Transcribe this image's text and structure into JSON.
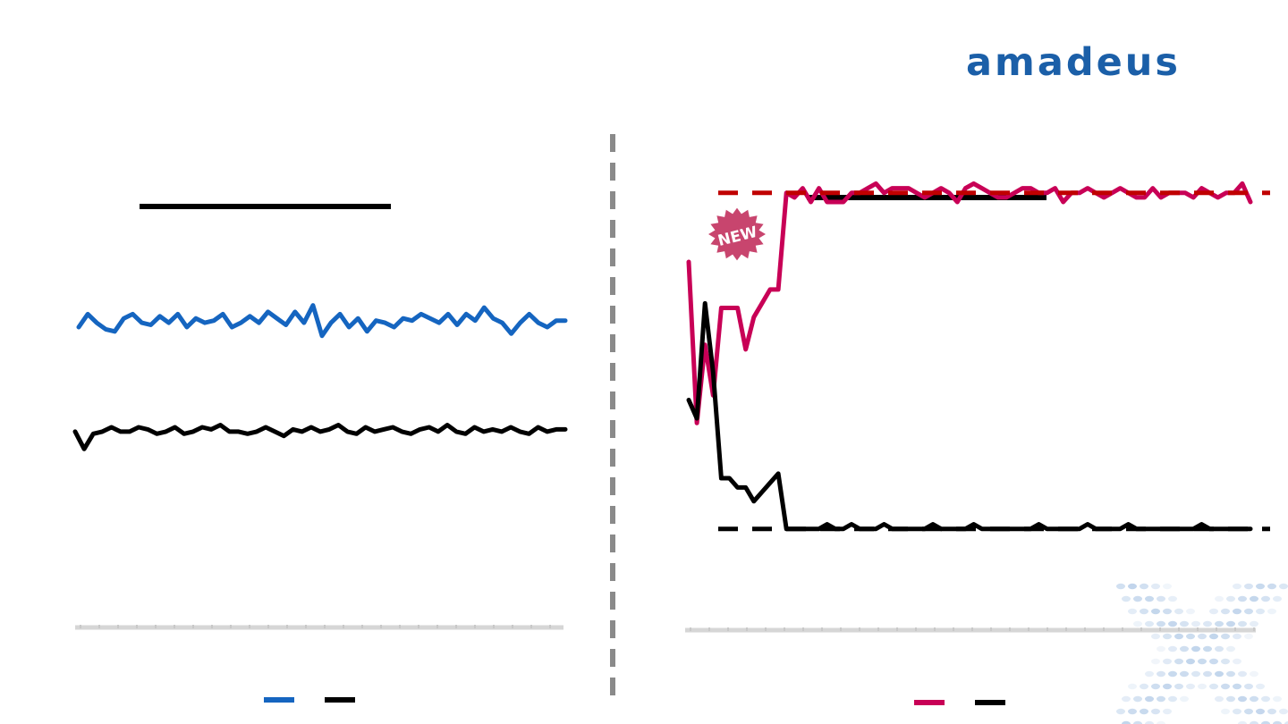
{
  "logo": {
    "text": "amadeus",
    "color": "#1b5fa8"
  },
  "badge": {
    "text": "NEW",
    "color": "#c8456e"
  },
  "chart_data": [
    {
      "type": "line",
      "panel": "left",
      "ylim": [
        0,
        100
      ],
      "grid": false,
      "legend": "bottom-center",
      "series": [
        {
          "color": "#1565c0",
          "values": [
            69.0,
            72.0,
            70.0,
            68.5,
            68.0,
            71.0,
            72.0,
            70.0,
            69.5,
            71.5,
            70.0,
            72.0,
            69.0,
            71.0,
            70.0,
            70.5,
            72.0,
            69.0,
            70.0,
            71.5,
            70.0,
            72.5,
            71.0,
            69.5,
            72.5,
            70.0,
            74.0,
            67.0,
            70.0,
            72.0,
            69.0,
            71.0,
            68.0,
            70.5,
            70.0,
            69.0,
            71.0,
            70.5,
            72.0,
            71.0,
            70.0,
            72.0,
            69.5,
            72.0,
            70.5,
            73.5,
            71.0,
            70.0,
            67.5,
            70.0,
            72.0,
            70.0,
            69.0,
            70.5,
            70.5
          ],
          "dash": false
        },
        {
          "color": "#000000",
          "values": [
            45.0,
            41.0,
            44.5,
            45.0,
            46.0,
            45.0,
            45.0,
            46.0,
            45.5,
            44.5,
            45.0,
            46.0,
            44.5,
            45.0,
            46.0,
            45.5,
            46.5,
            45.0,
            45.0,
            44.5,
            45.0,
            46.0,
            45.0,
            44.0,
            45.5,
            45.0,
            46.0,
            45.0,
            45.5,
            46.5,
            45.0,
            44.5,
            46.0,
            45.0,
            45.5,
            46.0,
            45.0,
            44.5,
            45.5,
            46.0,
            45.0,
            46.5,
            45.0,
            44.5,
            46.0,
            45.0,
            45.5,
            45.0,
            46.0,
            45.0,
            44.5,
            46.0,
            45.0,
            45.5,
            45.5
          ],
          "dash": false
        }
      ]
    },
    {
      "type": "line",
      "panel": "right",
      "ylim": [
        0,
        100
      ],
      "grid": false,
      "legend": "bottom-center",
      "series": [
        {
          "color": "#c80056",
          "values": [
            80,
            45,
            62,
            51,
            70,
            70,
            70,
            61,
            68,
            71,
            74,
            74,
            95,
            94,
            96,
            93,
            96,
            93,
            93,
            93,
            95,
            95,
            96,
            97,
            95,
            96,
            96,
            96,
            95,
            94,
            95,
            96,
            95,
            93,
            96,
            97,
            96,
            95,
            94,
            94,
            95,
            96,
            96,
            95,
            95,
            96,
            93,
            95,
            95,
            96,
            95,
            94,
            95,
            96,
            95,
            94,
            94,
            96,
            94,
            95,
            95,
            95,
            94,
            96,
            95,
            94,
            95,
            95,
            97,
            93
          ],
          "dash": false
        },
        {
          "color": "#000000",
          "values": [
            50,
            46,
            71,
            56,
            33,
            33,
            31,
            31,
            28,
            30,
            32,
            34,
            22,
            22,
            22,
            22,
            22,
            23,
            22,
            22,
            23,
            22,
            22,
            22,
            23,
            22,
            22,
            22,
            22,
            22,
            23,
            22,
            22,
            22,
            22,
            23,
            22,
            22,
            22,
            22,
            22,
            22,
            22,
            23,
            22,
            22,
            22,
            22,
            22,
            23,
            22,
            22,
            22,
            22,
            23,
            22,
            22,
            22,
            22,
            22,
            22,
            22,
            22,
            23,
            22,
            22,
            22,
            22,
            22,
            22
          ],
          "dash": false
        },
        {
          "color": "#c00000",
          "values": [
            95,
            95
          ],
          "dash": true
        },
        {
          "color": "#000000",
          "values": [
            22,
            22
          ],
          "dash": true
        }
      ]
    }
  ]
}
